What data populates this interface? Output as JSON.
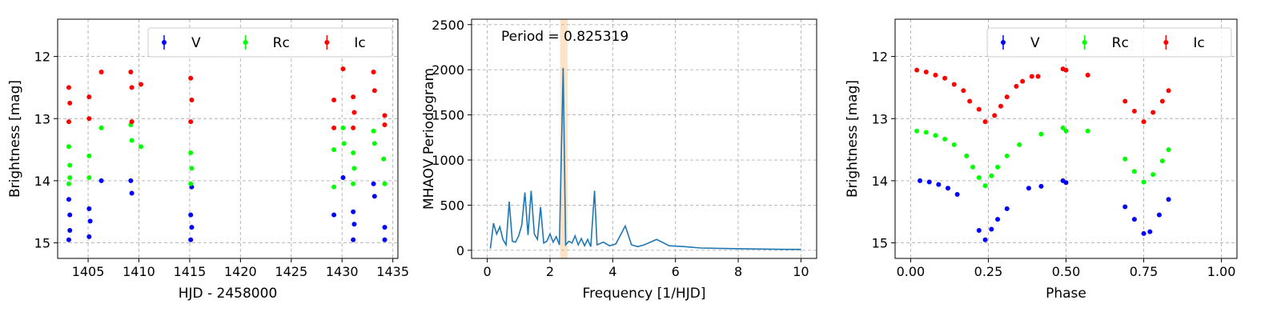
{
  "chart_data": [
    {
      "type": "scatter",
      "panel": "time-series",
      "xlabel": "HJD - 2458000",
      "ylabel": "Brightness [mag]",
      "xlim": [
        1402,
        1435.5
      ],
      "ylim": [
        15.25,
        11.4
      ],
      "y_inverted": true,
      "x_ticks": [
        1405,
        1410,
        1415,
        1420,
        1425,
        1430,
        1435
      ],
      "y_ticks": [
        12,
        13,
        14,
        15
      ],
      "grid": true,
      "legend": {
        "position": "top-right",
        "ncol": 3
      },
      "series": [
        {
          "name": "V",
          "color": "#0000ff",
          "points": [
            [
              1403.1,
              14.3
            ],
            [
              1403.1,
              14.95
            ],
            [
              1403.2,
              14.55
            ],
            [
              1403.2,
              14.8
            ],
            [
              1405.1,
              14.45
            ],
            [
              1405.1,
              14.9
            ],
            [
              1405.2,
              14.65
            ],
            [
              1406.3,
              14.0
            ],
            [
              1409.2,
              14.0
            ],
            [
              1409.3,
              14.2
            ],
            [
              1415.1,
              14.55
            ],
            [
              1415.1,
              14.95
            ],
            [
              1415.2,
              14.1
            ],
            [
              1415.2,
              14.75
            ],
            [
              1429.2,
              14.55
            ],
            [
              1430.1,
              13.95
            ],
            [
              1431.1,
              14.5
            ],
            [
              1431.1,
              14.95
            ],
            [
              1431.2,
              14.7
            ],
            [
              1433.1,
              14.05
            ],
            [
              1433.2,
              14.25
            ],
            [
              1434.2,
              14.75
            ],
            [
              1434.2,
              14.95
            ]
          ]
        },
        {
          "name": "Rc",
          "color": "#00ff00",
          "points": [
            [
              1403.1,
              13.45
            ],
            [
              1403.1,
              14.05
            ],
            [
              1403.2,
              13.75
            ],
            [
              1403.2,
              13.95
            ],
            [
              1405.1,
              13.6
            ],
            [
              1405.1,
              13.95
            ],
            [
              1406.3,
              13.15
            ],
            [
              1409.2,
              13.1
            ],
            [
              1409.3,
              13.35
            ],
            [
              1410.2,
              13.45
            ],
            [
              1415.1,
              13.55
            ],
            [
              1415.1,
              14.05
            ],
            [
              1415.2,
              13.8
            ],
            [
              1429.2,
              13.5
            ],
            [
              1429.2,
              14.1
            ],
            [
              1430.1,
              13.15
            ],
            [
              1430.2,
              13.4
            ],
            [
              1431.1,
              13.55
            ],
            [
              1431.1,
              14.05
            ],
            [
              1431.2,
              13.8
            ],
            [
              1433.1,
              13.2
            ],
            [
              1433.2,
              13.4
            ],
            [
              1434.1,
              13.65
            ],
            [
              1434.2,
              14.05
            ]
          ]
        },
        {
          "name": "Ic",
          "color": "#ff0000",
          "points": [
            [
              1403.1,
              12.5
            ],
            [
              1403.1,
              13.05
            ],
            [
              1403.2,
              12.75
            ],
            [
              1405.1,
              12.65
            ],
            [
              1405.1,
              13.0
            ],
            [
              1406.3,
              12.25
            ],
            [
              1409.2,
              12.25
            ],
            [
              1409.3,
              12.5
            ],
            [
              1409.3,
              13.05
            ],
            [
              1410.2,
              12.45
            ],
            [
              1415.1,
              12.35
            ],
            [
              1415.1,
              13.05
            ],
            [
              1415.2,
              12.7
            ],
            [
              1429.2,
              12.7
            ],
            [
              1429.2,
              13.15
            ],
            [
              1430.1,
              12.2
            ],
            [
              1431.1,
              12.65
            ],
            [
              1431.1,
              13.15
            ],
            [
              1431.2,
              12.9
            ],
            [
              1433.1,
              12.25
            ],
            [
              1433.2,
              12.55
            ],
            [
              1434.2,
              12.95
            ],
            [
              1434.2,
              13.1
            ]
          ]
        }
      ]
    },
    {
      "type": "line",
      "panel": "periodogram",
      "title": "Period = 0.825319",
      "xlabel": "Frequency [1/HJD]",
      "ylabel": "MHAOV Periodogram",
      "xlim": [
        -0.5,
        10.5
      ],
      "ylim": [
        -90,
        2560
      ],
      "x_ticks": [
        0,
        2,
        4,
        6,
        8,
        10
      ],
      "y_ticks": [
        0,
        500,
        1000,
        1500,
        2000,
        2500
      ],
      "grid": true,
      "highlight_band": {
        "x_range": [
          2.32,
          2.56
        ],
        "color": "#fde3c8"
      },
      "series": [
        {
          "name": "",
          "color": "#1f77b4",
          "points": [
            [
              0.1,
              20
            ],
            [
              0.2,
              300
            ],
            [
              0.3,
              180
            ],
            [
              0.4,
              260
            ],
            [
              0.5,
              120
            ],
            [
              0.6,
              60
            ],
            [
              0.7,
              540
            ],
            [
              0.8,
              100
            ],
            [
              0.9,
              90
            ],
            [
              1.0,
              160
            ],
            [
              1.1,
              280
            ],
            [
              1.2,
              640
            ],
            [
              1.3,
              170
            ],
            [
              1.4,
              660
            ],
            [
              1.5,
              180
            ],
            [
              1.6,
              120
            ],
            [
              1.7,
              480
            ],
            [
              1.8,
              80
            ],
            [
              1.9,
              100
            ],
            [
              2.0,
              180
            ],
            [
              2.1,
              90
            ],
            [
              2.2,
              150
            ],
            [
              2.3,
              60
            ],
            [
              2.42,
              2020
            ],
            [
              2.5,
              60
            ],
            [
              2.6,
              100
            ],
            [
              2.7,
              80
            ],
            [
              2.8,
              160
            ],
            [
              2.9,
              60
            ],
            [
              3.0,
              130
            ],
            [
              3.1,
              50
            ],
            [
              3.2,
              120
            ],
            [
              3.3,
              40
            ],
            [
              3.42,
              660
            ],
            [
              3.5,
              60
            ],
            [
              3.7,
              90
            ],
            [
              3.9,
              50
            ],
            [
              4.1,
              70
            ],
            [
              4.4,
              270
            ],
            [
              4.6,
              60
            ],
            [
              4.8,
              40
            ],
            [
              5.0,
              60
            ],
            [
              5.4,
              120
            ],
            [
              5.8,
              50
            ],
            [
              6.3,
              40
            ],
            [
              6.8,
              25
            ],
            [
              7.5,
              20
            ],
            [
              8.5,
              15
            ],
            [
              9.5,
              10
            ],
            [
              10.0,
              10
            ]
          ]
        }
      ]
    },
    {
      "type": "scatter",
      "panel": "phase-folded",
      "xlabel": "Phase",
      "ylabel": "Brightness [mag]",
      "xlim": [
        -0.05,
        1.05
      ],
      "ylim": [
        15.25,
        11.4
      ],
      "y_inverted": true,
      "x_ticks": [
        0.0,
        0.25,
        0.5,
        0.75,
        1.0
      ],
      "x_tick_labels": [
        "0.00",
        "0.25",
        "0.50",
        "0.75",
        "1.00"
      ],
      "y_ticks": [
        12,
        13,
        14,
        15
      ],
      "grid": true,
      "legend": {
        "position": "top-right",
        "ncol": 3
      },
      "series": [
        {
          "name": "V",
          "color": "#0000ff",
          "points": [
            [
              0.03,
              14.0
            ],
            [
              0.06,
              14.02
            ],
            [
              0.09,
              14.06
            ],
            [
              0.12,
              14.12
            ],
            [
              0.15,
              14.22
            ],
            [
              0.22,
              14.8
            ],
            [
              0.24,
              14.95
            ],
            [
              0.26,
              14.78
            ],
            [
              0.28,
              14.62
            ],
            [
              0.31,
              14.45
            ],
            [
              0.38,
              14.12
            ],
            [
              0.42,
              14.09
            ],
            [
              0.49,
              14.0
            ],
            [
              0.5,
              14.03
            ],
            [
              0.69,
              14.42
            ],
            [
              0.72,
              14.62
            ],
            [
              0.75,
              14.85
            ],
            [
              0.77,
              14.82
            ],
            [
              0.8,
              14.55
            ],
            [
              0.83,
              14.3
            ]
          ]
        },
        {
          "name": "Rc",
          "color": "#00ff00",
          "points": [
            [
              0.02,
              13.2
            ],
            [
              0.05,
              13.22
            ],
            [
              0.08,
              13.27
            ],
            [
              0.11,
              13.33
            ],
            [
              0.14,
              13.42
            ],
            [
              0.18,
              13.6
            ],
            [
              0.2,
              13.78
            ],
            [
              0.22,
              13.95
            ],
            [
              0.24,
              14.08
            ],
            [
              0.26,
              13.92
            ],
            [
              0.28,
              13.78
            ],
            [
              0.31,
              13.6
            ],
            [
              0.35,
              13.42
            ],
            [
              0.42,
              13.25
            ],
            [
              0.49,
              13.15
            ],
            [
              0.5,
              13.2
            ],
            [
              0.57,
              13.2
            ],
            [
              0.69,
              13.65
            ],
            [
              0.72,
              13.85
            ],
            [
              0.75,
              14.02
            ],
            [
              0.78,
              13.9
            ],
            [
              0.81,
              13.68
            ],
            [
              0.83,
              13.5
            ]
          ]
        },
        {
          "name": "Ic",
          "color": "#ff0000",
          "points": [
            [
              0.02,
              12.22
            ],
            [
              0.05,
              12.25
            ],
            [
              0.08,
              12.3
            ],
            [
              0.11,
              12.35
            ],
            [
              0.14,
              12.45
            ],
            [
              0.17,
              12.55
            ],
            [
              0.19,
              12.72
            ],
            [
              0.22,
              12.85
            ],
            [
              0.24,
              13.05
            ],
            [
              0.27,
              12.95
            ],
            [
              0.29,
              12.8
            ],
            [
              0.31,
              12.65
            ],
            [
              0.34,
              12.48
            ],
            [
              0.36,
              12.4
            ],
            [
              0.39,
              12.32
            ],
            [
              0.41,
              12.32
            ],
            [
              0.49,
              12.2
            ],
            [
              0.5,
              12.22
            ],
            [
              0.57,
              12.3
            ],
            [
              0.69,
              12.72
            ],
            [
              0.72,
              12.88
            ],
            [
              0.75,
              13.05
            ],
            [
              0.78,
              12.9
            ],
            [
              0.81,
              12.72
            ],
            [
              0.83,
              12.55
            ]
          ]
        }
      ]
    }
  ]
}
